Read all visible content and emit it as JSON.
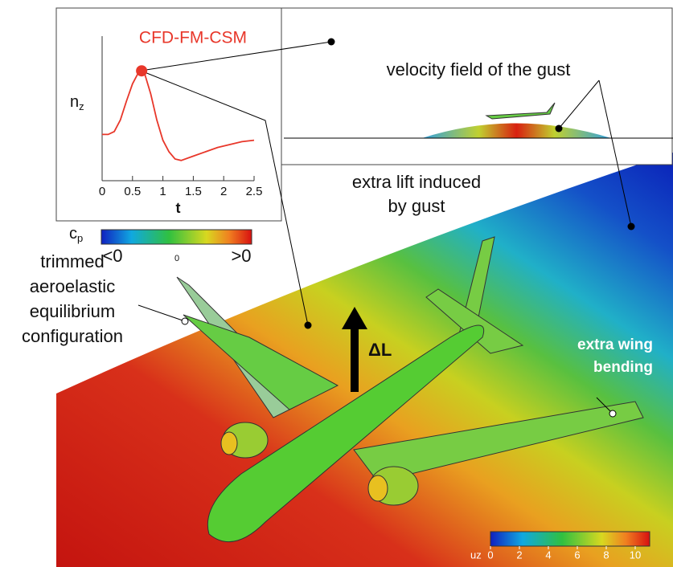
{
  "chart_data": {
    "type": "line",
    "title": "CFD-FM-CSM",
    "title_color": "#e8372a",
    "x_label": "t",
    "y_label": {
      "base": "n",
      "sub": "z"
    },
    "x": [
      0,
      0.1,
      0.2,
      0.3,
      0.4,
      0.5,
      0.6,
      0.65,
      0.7,
      0.8,
      0.9,
      1.0,
      1.1,
      1.2,
      1.3,
      1.5,
      1.7,
      1.9,
      2.1,
      2.3,
      2.5
    ],
    "series": [
      {
        "color": "#e8372a",
        "values": [
          0.32,
          0.32,
          0.34,
          0.42,
          0.55,
          0.67,
          0.75,
          0.76,
          0.74,
          0.6,
          0.42,
          0.28,
          0.2,
          0.15,
          0.14,
          0.17,
          0.2,
          0.23,
          0.25,
          0.27,
          0.28
        ]
      }
    ],
    "highlight": {
      "x": 0.65,
      "y": 0.76,
      "color": "#e8372a"
    },
    "xlim": [
      0,
      2.5
    ],
    "xticks": [
      0,
      0.5,
      1,
      1.5,
      2,
      2.5
    ],
    "ylim": [
      0,
      1
    ]
  },
  "annotations": {
    "gust_label": "velocity field of the gust",
    "lift_label": [
      "extra lift induced",
      "by gust"
    ],
    "delta_lift": "ΔL",
    "trim_label": [
      "trimmed",
      "aeroelastic",
      "equilibrium",
      "configuration"
    ],
    "bending_label": [
      "extra wing",
      "bending"
    ]
  },
  "cp_colorbar": {
    "title": {
      "base": "c",
      "sub": "p"
    },
    "labels": [
      "<0",
      "0",
      ">0"
    ]
  },
  "uz_colorbar": {
    "title": "uz",
    "lim": [
      0,
      11
    ],
    "ticks": [
      0,
      2,
      4,
      6,
      8,
      10
    ]
  }
}
